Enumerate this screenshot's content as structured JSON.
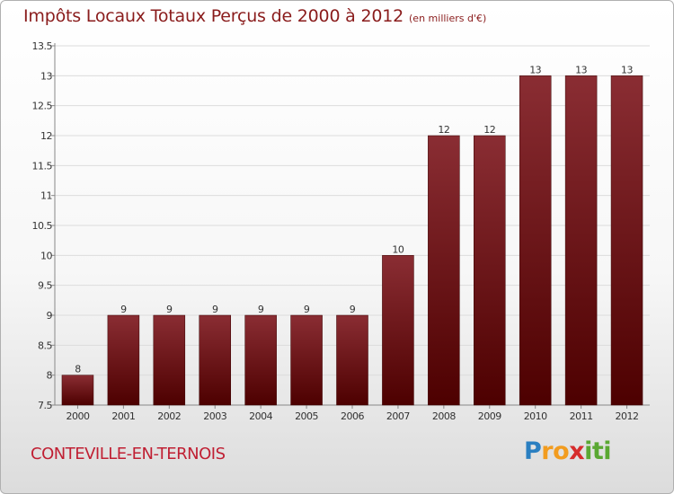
{
  "title": "Impôts Locaux Totaux Perçus de 2000 à 2012",
  "subtitle": "(en milliers d'€)",
  "commune": "CONTEVILLE-EN-TERNOIS",
  "logo": {
    "text": "Proxiti",
    "letters": [
      "P",
      "r",
      "o",
      "x",
      "i",
      "t",
      "i"
    ],
    "colors": [
      "#2a7fc1",
      "#f29c1f",
      "#f29c1f",
      "#d62c2c",
      "#5aa832",
      "#5aa832",
      "#5aa832"
    ]
  },
  "colors": {
    "bar_top": "#8a2d33",
    "bar_bottom": "#4d0000",
    "title": "#8a1c1c",
    "commune": "#c01f33"
  },
  "chart_data": {
    "type": "bar",
    "title": "Impôts Locaux Totaux Perçus de 2000 à 2012",
    "xlabel": "",
    "ylabel": "",
    "categories": [
      "2000",
      "2001",
      "2002",
      "2003",
      "2004",
      "2005",
      "2006",
      "2007",
      "2008",
      "2009",
      "2010",
      "2011",
      "2012"
    ],
    "values": [
      8,
      9,
      9,
      9,
      9,
      9,
      9,
      10,
      12,
      12,
      13,
      13,
      13
    ],
    "ylim": [
      7.5,
      13.5
    ],
    "yticks": [
      7.5,
      8,
      8.5,
      9,
      9.5,
      10,
      10.5,
      11,
      11.5,
      12,
      12.5,
      13,
      13.5
    ],
    "ytick_labels": [
      "7.5",
      "8",
      "8.5",
      "9",
      "9.5",
      "10",
      "10.5",
      "11",
      "11.5",
      "12",
      "12.5",
      "13",
      "13.5"
    ],
    "grid": true
  }
}
